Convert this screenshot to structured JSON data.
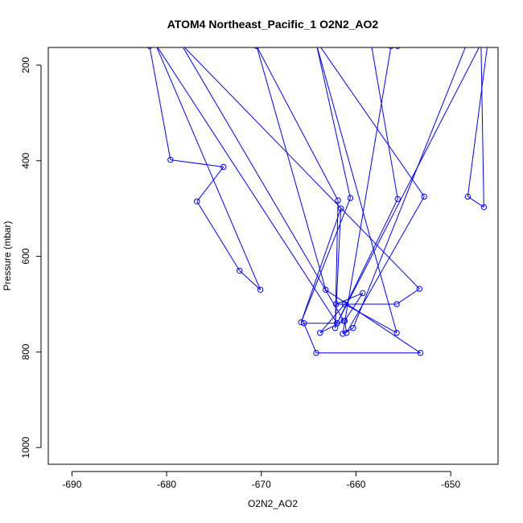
{
  "chart_data": {
    "type": "line",
    "title": "ATOM4 Northeast_Pacific_1 O2N2_AO2",
    "xlabel": "O2N2_AO2",
    "ylabel": "Pressure (mbar)",
    "xlim": [
      -692.5,
      -645
    ],
    "ylim": [
      1035,
      163
    ],
    "y_axis_inverted": true,
    "x_ticks": [
      -690,
      -680,
      -670,
      -660,
      -650
    ],
    "y_ticks": [
      200,
      400,
      600,
      800,
      1000
    ],
    "grid": false,
    "marker": "open-circle",
    "color": "#0000ff",
    "series": [
      {
        "x": [
          -681.8,
          -679.6,
          -674.0,
          -676.8,
          -672.3,
          -670.1,
          -681.2,
          -662.0,
          -665.5,
          -664.2,
          -653.2,
          -663.2,
          -670.5,
          -661.9,
          -662.2,
          -661.6,
          -665.8,
          -660.6,
          -664.2,
          -655.7,
          -661.2,
          -663.8,
          -661.3,
          -678.5,
          -653.3,
          -655.7,
          -662.1,
          -659.3,
          -661.2,
          -661.0,
          -652.8,
          -664.0,
          -656.5,
          -657.2,
          -658.4,
          -655.6,
          -662.0,
          -646.8,
          -646.5,
          -648.2,
          -646.1,
          -648.3,
          -660.3,
          -661.4,
          -656.3,
          -655.6
        ],
        "y": [
          160,
          398,
          413,
          485,
          630,
          670,
          155,
          740,
          740,
          802,
          802,
          670,
          160,
          483,
          750,
          500,
          738,
          478,
          155,
          760,
          700,
          760,
          735,
          155,
          668,
          700,
          700,
          677,
          735,
          760,
          475,
          155,
          155,
          155,
          155,
          480,
          740,
          155,
          497,
          475,
          155,
          155,
          750,
          762,
          160,
          160
        ]
      }
    ]
  }
}
